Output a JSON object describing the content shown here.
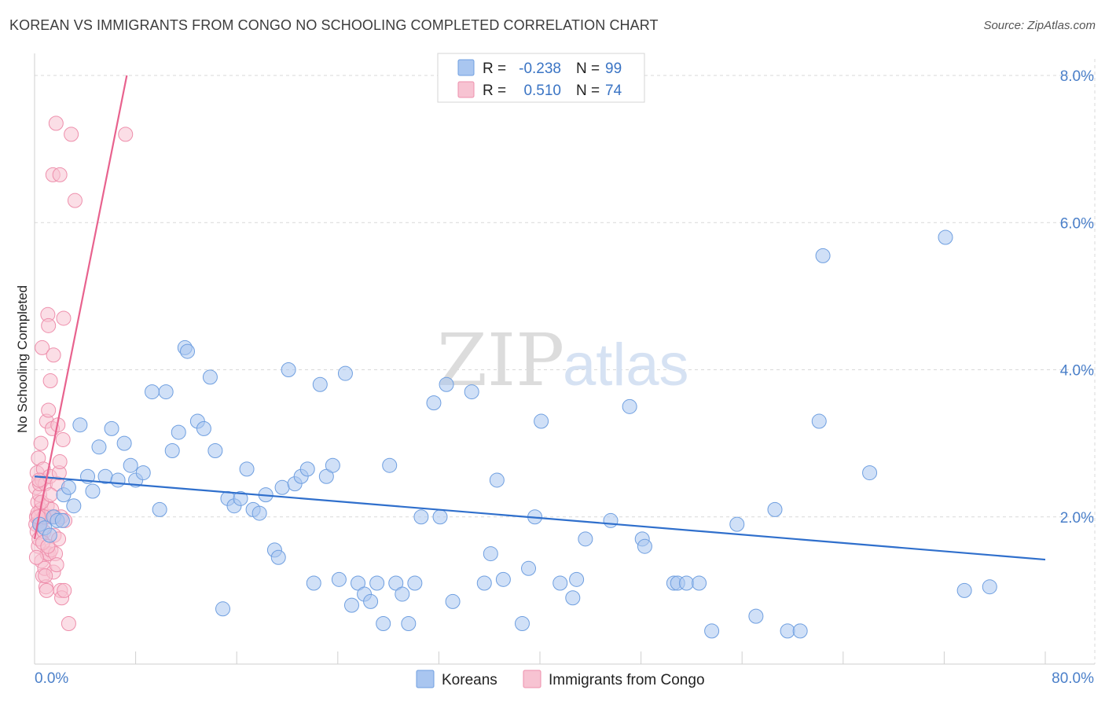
{
  "header": {
    "title": "KOREAN VS IMMIGRANTS FROM CONGO NO SCHOOLING COMPLETED CORRELATION CHART",
    "source": "Source: ZipAtlas.com"
  },
  "watermark": {
    "zip": "ZIP",
    "atlas": "atlas"
  },
  "legend": {
    "r_label": "R =",
    "n_label": "N =",
    "rows": [
      {
        "r": "-0.238",
        "n": "99",
        "color": "#a9c6f0"
      },
      {
        "r": "0.510",
        "n": "74",
        "color": "#f5b8cb"
      }
    ]
  },
  "bottom_legend": [
    {
      "label": "Koreans",
      "color": "#a9c6f0"
    },
    {
      "label": "Immigrants from Congo",
      "color": "#f5b8cb"
    }
  ],
  "colors": {
    "koreans_fill": "#a9c6f0",
    "koreans_stroke": "#6f9fe0",
    "koreans_line": "#2f6fcc",
    "congo_fill": "#f7c3d2",
    "congo_stroke": "#ee8fac",
    "congo_line": "#e8628e",
    "grid": "#d9d9d9",
    "axis_text": "#4a7fc9"
  },
  "chart_data": {
    "type": "scatter",
    "title": "KOREAN VS IMMIGRANTS FROM CONGO NO SCHOOLING COMPLETED CORRELATION CHART",
    "xlabel": "",
    "ylabel": "No Schooling Completed",
    "xlim": [
      0,
      80
    ],
    "ylim": [
      0,
      8.5
    ],
    "x_tick_labels": [
      "0.0%",
      "80.0%"
    ],
    "y_ticks": [
      2.0,
      4.0,
      6.0,
      8.0
    ],
    "y_tick_labels": [
      "2.0%",
      "4.0%",
      "6.0%",
      "8.0%"
    ],
    "grid": true,
    "series": [
      {
        "name": "Koreans",
        "r": -0.238,
        "n": 99,
        "trend": {
          "x0": 0,
          "y0": 2.55,
          "x1": 80,
          "y1": 1.42
        },
        "points": [
          [
            0.4,
            1.9
          ],
          [
            0.8,
            1.85
          ],
          [
            1.2,
            1.75
          ],
          [
            1.5,
            2.0
          ],
          [
            1.8,
            1.95
          ],
          [
            2.2,
            1.95
          ],
          [
            2.3,
            2.3
          ],
          [
            2.7,
            2.4
          ],
          [
            3.1,
            2.15
          ],
          [
            3.6,
            3.25
          ],
          [
            4.2,
            2.55
          ],
          [
            4.6,
            2.35
          ],
          [
            5.1,
            2.95
          ],
          [
            5.6,
            2.55
          ],
          [
            6.1,
            3.2
          ],
          [
            6.6,
            2.5
          ],
          [
            7.1,
            3.0
          ],
          [
            7.6,
            2.7
          ],
          [
            8.0,
            2.5
          ],
          [
            8.6,
            2.6
          ],
          [
            9.3,
            3.7
          ],
          [
            9.9,
            2.1
          ],
          [
            10.4,
            3.7
          ],
          [
            10.9,
            2.9
          ],
          [
            11.4,
            3.15
          ],
          [
            11.9,
            4.3
          ],
          [
            12.1,
            4.25
          ],
          [
            12.9,
            3.3
          ],
          [
            13.4,
            3.2
          ],
          [
            13.9,
            3.9
          ],
          [
            14.3,
            2.9
          ],
          [
            14.9,
            0.75
          ],
          [
            15.3,
            2.25
          ],
          [
            15.8,
            2.15
          ],
          [
            16.3,
            2.25
          ],
          [
            16.8,
            2.65
          ],
          [
            17.3,
            2.1
          ],
          [
            17.8,
            2.05
          ],
          [
            18.3,
            2.3
          ],
          [
            19.0,
            1.55
          ],
          [
            19.3,
            1.45
          ],
          [
            19.6,
            2.4
          ],
          [
            20.1,
            4.0
          ],
          [
            20.6,
            2.45
          ],
          [
            21.1,
            2.55
          ],
          [
            21.6,
            2.65
          ],
          [
            22.1,
            1.1
          ],
          [
            22.6,
            3.8
          ],
          [
            23.1,
            2.55
          ],
          [
            23.6,
            2.7
          ],
          [
            24.1,
            1.15
          ],
          [
            24.6,
            3.95
          ],
          [
            25.1,
            0.8
          ],
          [
            25.6,
            1.1
          ],
          [
            26.1,
            0.95
          ],
          [
            26.6,
            0.85
          ],
          [
            27.1,
            1.1
          ],
          [
            27.6,
            0.55
          ],
          [
            28.1,
            2.7
          ],
          [
            28.6,
            1.1
          ],
          [
            29.1,
            0.95
          ],
          [
            29.6,
            0.55
          ],
          [
            30.1,
            1.1
          ],
          [
            30.6,
            2.0
          ],
          [
            31.6,
            3.55
          ],
          [
            32.1,
            2.0
          ],
          [
            32.6,
            3.8
          ],
          [
            33.1,
            0.85
          ],
          [
            34.6,
            3.7
          ],
          [
            35.6,
            1.1
          ],
          [
            36.1,
            1.5
          ],
          [
            36.6,
            2.5
          ],
          [
            37.1,
            1.15
          ],
          [
            38.6,
            0.55
          ],
          [
            39.1,
            1.3
          ],
          [
            39.6,
            2.0
          ],
          [
            40.1,
            3.3
          ],
          [
            41.6,
            1.1
          ],
          [
            42.6,
            0.9
          ],
          [
            42.9,
            1.15
          ],
          [
            43.6,
            1.7
          ],
          [
            45.6,
            1.95
          ],
          [
            47.1,
            3.5
          ],
          [
            48.1,
            1.7
          ],
          [
            48.3,
            1.6
          ],
          [
            50.6,
            1.1
          ],
          [
            50.9,
            1.1
          ],
          [
            51.6,
            1.1
          ],
          [
            52.6,
            1.1
          ],
          [
            53.6,
            0.45
          ],
          [
            55.6,
            1.9
          ],
          [
            57.1,
            0.65
          ],
          [
            58.6,
            2.1
          ],
          [
            59.6,
            0.45
          ],
          [
            60.6,
            0.45
          ],
          [
            62.1,
            3.3
          ],
          [
            62.4,
            5.55
          ],
          [
            66.1,
            2.6
          ],
          [
            72.1,
            5.8
          ],
          [
            73.6,
            1.0
          ],
          [
            75.6,
            1.05
          ]
        ]
      },
      {
        "name": "Immigrants from Congo",
        "r": 0.51,
        "n": 74,
        "trend": {
          "x0": 0,
          "y0": 1.7,
          "x1": 7.3,
          "y1": 8.0
        },
        "points": [
          [
            0.1,
            1.9
          ],
          [
            0.1,
            2.4
          ],
          [
            0.15,
            2.0
          ],
          [
            0.2,
            1.8
          ],
          [
            0.2,
            2.6
          ],
          [
            0.25,
            2.2
          ],
          [
            0.3,
            1.6
          ],
          [
            0.3,
            2.8
          ],
          [
            0.35,
            1.7
          ],
          [
            0.4,
            2.3
          ],
          [
            0.4,
            2.45
          ],
          [
            0.45,
            1.95
          ],
          [
            0.5,
            2.1
          ],
          [
            0.5,
            3.0
          ],
          [
            0.55,
            1.4
          ],
          [
            0.6,
            2.5
          ],
          [
            0.6,
            4.3
          ],
          [
            0.65,
            1.2
          ],
          [
            0.7,
            2.65
          ],
          [
            0.75,
            1.8
          ],
          [
            0.8,
            1.3
          ],
          [
            0.8,
            2.0
          ],
          [
            0.85,
            2.45
          ],
          [
            0.9,
            1.05
          ],
          [
            0.95,
            3.3
          ],
          [
            1.0,
            1.5
          ],
          [
            1.0,
            2.15
          ],
          [
            1.05,
            4.75
          ],
          [
            1.1,
            3.45
          ],
          [
            1.1,
            4.6
          ],
          [
            1.15,
            1.5
          ],
          [
            1.2,
            2.0
          ],
          [
            1.2,
            2.55
          ],
          [
            1.25,
            3.85
          ],
          [
            1.3,
            1.55
          ],
          [
            1.35,
            2.1
          ],
          [
            1.4,
            3.2
          ],
          [
            1.45,
            6.65
          ],
          [
            1.5,
            1.25
          ],
          [
            1.5,
            4.2
          ],
          [
            1.55,
            1.75
          ],
          [
            1.6,
            2.0
          ],
          [
            1.65,
            1.5
          ],
          [
            1.7,
            7.35
          ],
          [
            1.75,
            1.35
          ],
          [
            1.8,
            2.45
          ],
          [
            1.85,
            3.25
          ],
          [
            1.9,
            1.7
          ],
          [
            1.95,
            2.6
          ],
          [
            2.0,
            2.75
          ],
          [
            2.0,
            6.65
          ],
          [
            2.05,
            1.0
          ],
          [
            2.1,
            2.0
          ],
          [
            2.15,
            0.9
          ],
          [
            2.25,
            3.05
          ],
          [
            2.3,
            4.7
          ],
          [
            2.35,
            1.0
          ],
          [
            2.4,
            1.95
          ],
          [
            0.15,
            1.45
          ],
          [
            0.25,
            2.05
          ],
          [
            0.35,
            2.5
          ],
          [
            0.45,
            1.9
          ],
          [
            0.55,
            2.2
          ],
          [
            0.65,
            1.65
          ],
          [
            0.75,
            2.0
          ],
          [
            0.85,
            1.2
          ],
          [
            0.95,
            1.0
          ],
          [
            1.25,
            2.3
          ],
          [
            2.7,
            0.55
          ],
          [
            2.9,
            7.2
          ],
          [
            3.2,
            6.3
          ],
          [
            7.2,
            7.2
          ],
          [
            1.05,
            1.6
          ],
          [
            0.3,
            2.0
          ]
        ]
      }
    ]
  }
}
